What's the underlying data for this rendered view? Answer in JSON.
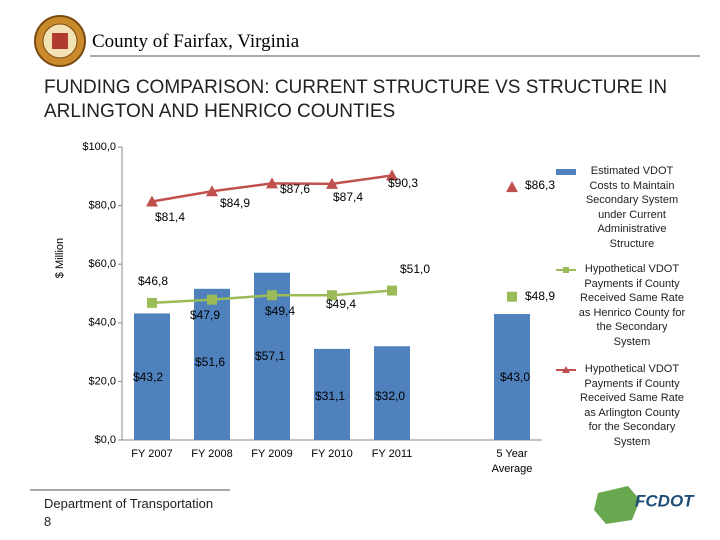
{
  "header": {
    "organization": "County of Fairfax, Virginia"
  },
  "slide_title": "FUNDING COMPARISON: CURRENT STRUCTURE VS STRUCTURE IN ARLINGTON AND HENRICO COUNTIES",
  "chart_data": {
    "type": "bar",
    "y_label": "$ Million",
    "categories": [
      "FY 2007",
      "FY 2008",
      "FY 2009",
      "FY 2010",
      "FY 2011",
      null,
      "5 Year Average"
    ],
    "ylim": [
      0,
      100
    ],
    "yticks": [
      {
        "value": 0,
        "label": "$0,0"
      },
      {
        "value": 20,
        "label": "$20,0"
      },
      {
        "value": 40,
        "label": "$40,0"
      },
      {
        "value": 60,
        "label": "$60,0"
      },
      {
        "value": 80,
        "label": "$80,0"
      },
      {
        "value": 100,
        "label": "$100,0"
      }
    ],
    "grid": false,
    "legend": "right",
    "series": [
      {
        "name": "Estimated VDOT Costs to Maintain Secondary System under Current Administrative Structure",
        "type": "bar",
        "color": "#4f81bd",
        "values": [
          43.2,
          51.6,
          57.1,
          31.1,
          32.0,
          null,
          43.0
        ],
        "value_labels": [
          "$43,2",
          "$51,6",
          "$57,1",
          "$31,1",
          "$32,0",
          null,
          "$43,0"
        ]
      },
      {
        "name": "Hypothetical VDOT Payments if County Received Same Rate as Henrico County for the Secondary System",
        "type": "line",
        "marker": "square",
        "color": "#9bbb59",
        "values": [
          46.8,
          47.9,
          49.4,
          49.4,
          51.0,
          null,
          48.9
        ],
        "value_labels": [
          "$46,8",
          "$47,9",
          "$49,4",
          "$49,4",
          "$51,0",
          null,
          "$48,9"
        ]
      },
      {
        "name": "Hypothetical VDOT Payments if County Received Same Rate as Arlington County for the Secondary System",
        "type": "line",
        "marker": "triangle",
        "color": "#c0504d",
        "values": [
          81.4,
          84.9,
          87.6,
          87.4,
          90.3,
          null,
          86.3
        ],
        "value_labels": [
          "$81,4",
          "$84,9",
          "$87,6",
          "$87,4",
          "$90,3",
          null,
          "$86,3"
        ]
      }
    ]
  },
  "footer": {
    "department": "Department of Transportation",
    "page": "8",
    "logo": "FCDOT"
  }
}
